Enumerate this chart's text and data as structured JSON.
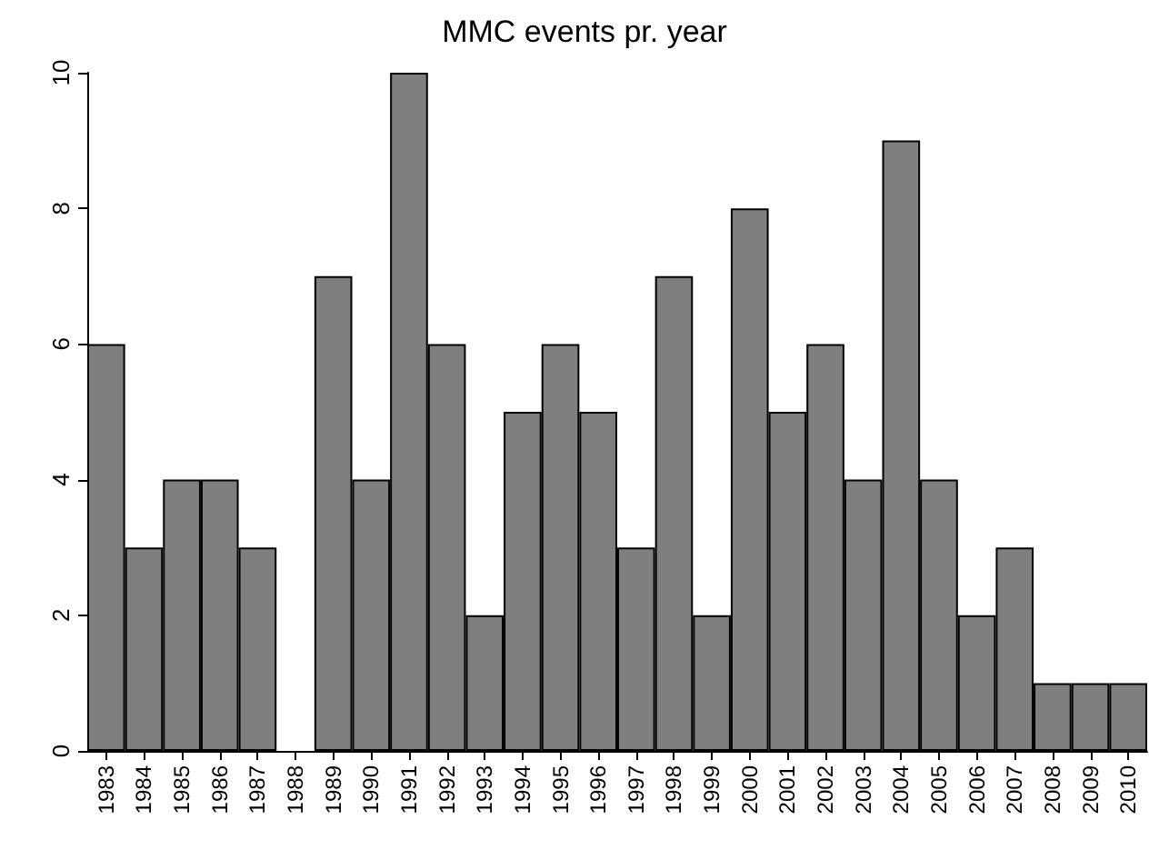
{
  "chart_data": {
    "type": "bar",
    "title": "MMC events pr. year",
    "categories": [
      "1983",
      "1984",
      "1985",
      "1986",
      "1987",
      "1988",
      "1989",
      "1990",
      "1991",
      "1992",
      "1993",
      "1994",
      "1995",
      "1996",
      "1997",
      "1998",
      "1999",
      "2000",
      "2001",
      "2002",
      "2003",
      "2004",
      "2005",
      "2006",
      "2007",
      "2008",
      "2009",
      "2010"
    ],
    "values": [
      6,
      3,
      4,
      4,
      3,
      0,
      7,
      4,
      10,
      6,
      2,
      5,
      6,
      5,
      3,
      7,
      2,
      8,
      5,
      6,
      4,
      9,
      4,
      2,
      3,
      1,
      1,
      1
    ],
    "color": "#7f7f7f",
    "ylim": [
      0,
      10
    ],
    "yticks": [
      0,
      2,
      4,
      6,
      8,
      10
    ],
    "grid": false
  }
}
